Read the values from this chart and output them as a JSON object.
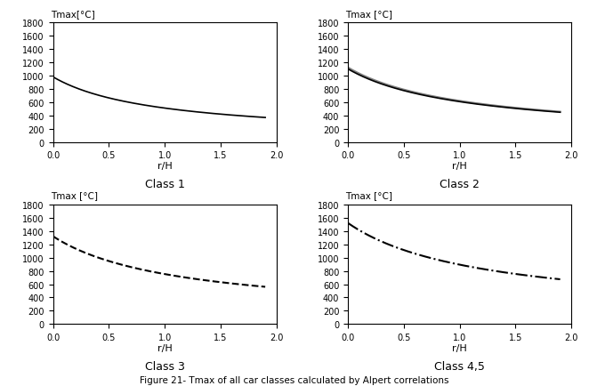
{
  "title": "Figure 21- Tmax of all car classes calculated by Alpert correlations",
  "subplots": [
    {
      "label": "Class 1",
      "T0": 980,
      "k": 1.2,
      "n": 0.85,
      "ambient": 20,
      "style": "solid",
      "color": "black",
      "linewidth": 1.2,
      "double_line": false,
      "ylabel": "Tmax[°C]"
    },
    {
      "label": "Class 2",
      "T0": 1100,
      "k": 1.1,
      "n": 0.82,
      "ambient": 20,
      "style": "solid",
      "color": "black",
      "linewidth": 1.2,
      "double_line": true,
      "ylabel": "Tmax [°C]"
    },
    {
      "label": "Class 3",
      "T0": 1320,
      "k": 1.05,
      "n": 0.8,
      "ambient": 20,
      "style": "dashed",
      "color": "black",
      "linewidth": 1.5,
      "double_line": false,
      "ylabel": "Tmax [°C]"
    },
    {
      "label": "Class 4,5",
      "T0": 1520,
      "k": 1.0,
      "n": 0.78,
      "ambient": 20,
      "style": "dashdot",
      "color": "black",
      "linewidth": 1.5,
      "double_line": false,
      "ylabel": "Tmax [°C]"
    }
  ],
  "xlim": [
    0.0,
    2.0
  ],
  "ylim": [
    0,
    1800
  ],
  "yticks": [
    0,
    200,
    400,
    600,
    800,
    1000,
    1200,
    1400,
    1600,
    1800
  ],
  "xticks": [
    0.0,
    0.5,
    1.0,
    1.5,
    2.0
  ],
  "xlabel": "r/H",
  "background_color": "#ffffff",
  "figsize": [
    6.62,
    4.35
  ],
  "dpi": 100
}
